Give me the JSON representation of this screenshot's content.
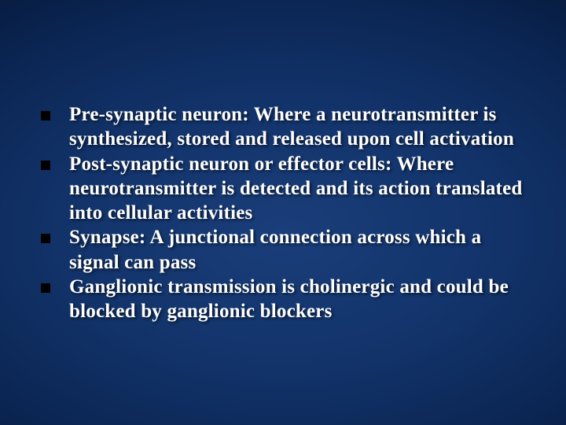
{
  "slide": {
    "background_gradient": [
      "#1a3e7a",
      "#12336a",
      "#0a2450",
      "#041530",
      "#000814"
    ],
    "text_color": "#ffffff",
    "bullet_marker_color": "#000000",
    "font_family": "Times New Roman",
    "font_size_pt": 25,
    "font_weight": "bold",
    "bullets": [
      {
        "text": "Pre-synaptic neuron: Where a neurotransmitter is synthesized, stored and released upon cell activation"
      },
      {
        "text": "Post-synaptic neuron or effector cells: Where neurotransmitter is detected and its action translated into cellular activities"
      },
      {
        "text": "Synapse: A junctional connection across which a signal can pass"
      },
      {
        "text": "Ganglionic transmission is cholinergic and could be blocked by ganglionic blockers"
      }
    ]
  }
}
